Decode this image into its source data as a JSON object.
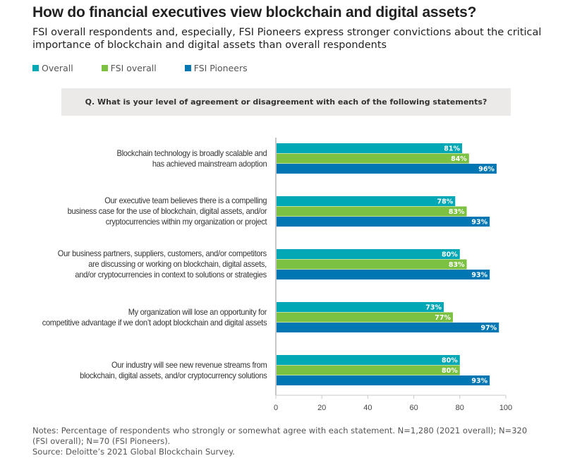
{
  "title": "How do financial executives view blockchain and digital assets?",
  "subtitle": "FSI overall respondents and, especially, FSI Pioneers express stronger convictions about the critical importance of blockchain and digital assets than overall respondents",
  "question": "Q.  What is your level of agreement or disagreement with each of the following statements?",
  "notes": [
    "Notes: Percentage of respondents who strongly or somewhat agree with each statement. N=1,280 (2021 overall); N=320 (FSI overall); N=70 (FSI Pioneers).",
    "Source: Deloitte’s 2021 Global Blockchain Survey."
  ],
  "chart_data": {
    "type": "bar",
    "orientation": "horizontal",
    "categories": [
      "Blockchain technology is broadly scalable and has achieved mainstream adoption",
      "Our executive team believes there is a compelling business case for the use of blockchain, digital assets, and/or cryptocurrencies within my organization or project",
      "Our business partners, suppliers, customers, and/or competitors are discussing or working on blockchain, digital assets, and/or cryptocurrencies in context to solutions or strategies",
      "My organization will lose an opportunity for competitive advantage if we don’t adopt blockchain and digital assets",
      "Our industry will see new revenue streams from blockchain, digital assets, and/or cryptocurrency solutions"
    ],
    "category_lines": [
      [
        "Blockchain technology is broadly scalable and",
        "has achieved mainstream adoption"
      ],
      [
        "Our executive team believes there is a compelling",
        "business case for the use of blockchain, digital assets, and/or",
        "cryptocurrencies within my organization or project"
      ],
      [
        "Our business partners, suppliers, customers, and/or competitors",
        "are discussing or working on blockchain, digital assets,",
        "and/or cryptocurrencies in context to solutions or strategies"
      ],
      [
        "My organization will lose an opportunity for",
        "competitive advantage if we don’t adopt blockchain and digital assets"
      ],
      [
        "Our industry will see new revenue streams from",
        "blockchain, digital assets, and/or cryptocurrency solutions"
      ]
    ],
    "series": [
      {
        "name": "Overall",
        "color": "#00a7b5",
        "values": [
          81,
          78,
          80,
          73,
          80
        ]
      },
      {
        "name": "FSI overall",
        "color": "#7dc142",
        "values": [
          84,
          83,
          83,
          77,
          80
        ]
      },
      {
        "name": "FSI Pioneers",
        "color": "#0077b3",
        "values": [
          96,
          93,
          93,
          97,
          93
        ]
      }
    ],
    "xlim": [
      0,
      100
    ],
    "xticks": [
      0,
      20,
      40,
      60,
      80,
      100
    ],
    "value_suffix": "%",
    "legend_position": "top-left",
    "grid": false
  }
}
